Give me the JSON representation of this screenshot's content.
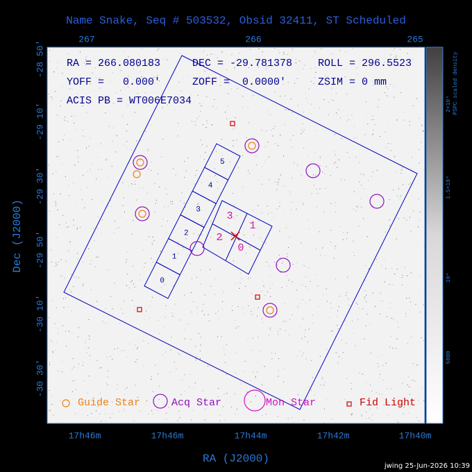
{
  "header": {
    "title": "Name Snake, Seq # 503532, Obsid 32411, ST Scheduled"
  },
  "axes": {
    "top_ticks": [
      "267",
      "266",
      "265"
    ],
    "bottom_ticks": [
      "17h46m",
      "17h46m",
      "17h44m",
      "17h42m",
      "17h40m"
    ],
    "left_ticks": [
      "-28 50'",
      "-29 10'",
      "-29 30'",
      "-29 50'",
      "-30 10'",
      "-30 30'"
    ],
    "x_label": "RA (J2000)",
    "y_label": "Dec (J2000)"
  },
  "info": {
    "ra": "RA = 266.080183",
    "dec": "DEC = -29.781378",
    "roll": "ROLL = 296.5523",
    "yoff": "YOFF =   0.000'",
    "zoff": "ZOFF =  0.0000'",
    "zsim": "ZSIM = 0 mm",
    "acis": "ACIS PB = WT006E7034"
  },
  "chips": {
    "acis_s": [
      "0",
      "1",
      "2",
      "3",
      "4",
      "5"
    ],
    "acis_i": [
      "3",
      "1",
      "2",
      "0"
    ]
  },
  "legend": [
    "Guide Star",
    "Acq Star",
    "Mon Star",
    "Fid Light"
  ],
  "colorbar": {
    "title": "PSPC scaled density",
    "ticks": [
      "2×10⁴",
      "1.5×10⁴",
      "10⁴",
      "5000"
    ]
  },
  "footer": "jwing 25-Jun-2026 10:39"
}
